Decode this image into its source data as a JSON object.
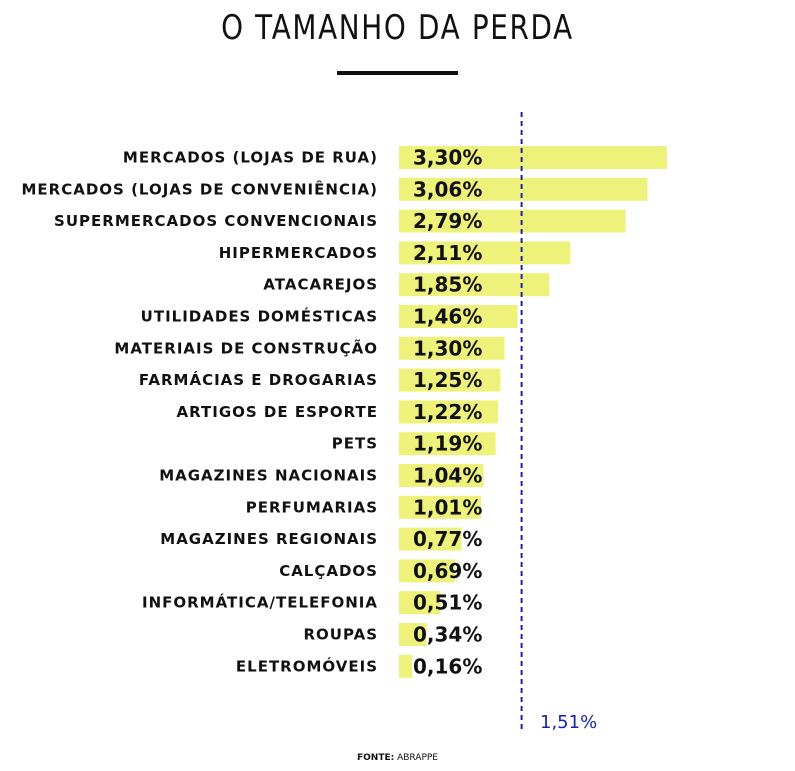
{
  "title": "O TAMANHO DA PERDA",
  "source": {
    "label": "FONTE:",
    "value": "ABRAPPE"
  },
  "colors": {
    "bar": "#eef27a",
    "reference": "#1a23a8",
    "text": "#111111"
  },
  "chart_data": {
    "type": "bar",
    "orientation": "horizontal",
    "title": "O TAMANHO DA PERDA",
    "categories": [
      "MERCADOS (LOJAS DE RUA)",
      "MERCADOS (LOJAS DE CONVENIÊNCIA)",
      "SUPERMERCADOS CONVENCIONAIS",
      "HIPERMERCADOS",
      "ATACAREJOS",
      "UTILIDADES DOMÉSTICAS",
      "MATERIAIS DE CONSTRUÇÃO",
      "FARMÁCIAS E DROGARIAS",
      "ARTIGOS DE ESPORTE",
      "PETS",
      "MAGAZINES NACIONAIS",
      "PERFUMARIAS",
      "MAGAZINES REGIONAIS",
      "CALÇADOS",
      "INFORMÁTICA/TELEFONIA",
      "ROUPAS",
      "ELETROMÓVEIS"
    ],
    "values": [
      3.3,
      3.06,
      2.79,
      2.11,
      1.85,
      1.46,
      1.3,
      1.25,
      1.22,
      1.19,
      1.04,
      1.01,
      0.77,
      0.69,
      0.51,
      0.34,
      0.16
    ],
    "value_labels": [
      "3,30%",
      "3,06%",
      "2,79%",
      "2,11%",
      "1,85%",
      "1,46%",
      "1,30%",
      "1,25%",
      "1,22%",
      "1,19%",
      "1,04%",
      "1,01%",
      "0,77%",
      "0,69%",
      "0,51%",
      "0,34%",
      "0,16%"
    ],
    "reference_line": {
      "value": 1.51,
      "label": "1,51%",
      "style": "dashed"
    },
    "grid": false,
    "legend": "none"
  }
}
